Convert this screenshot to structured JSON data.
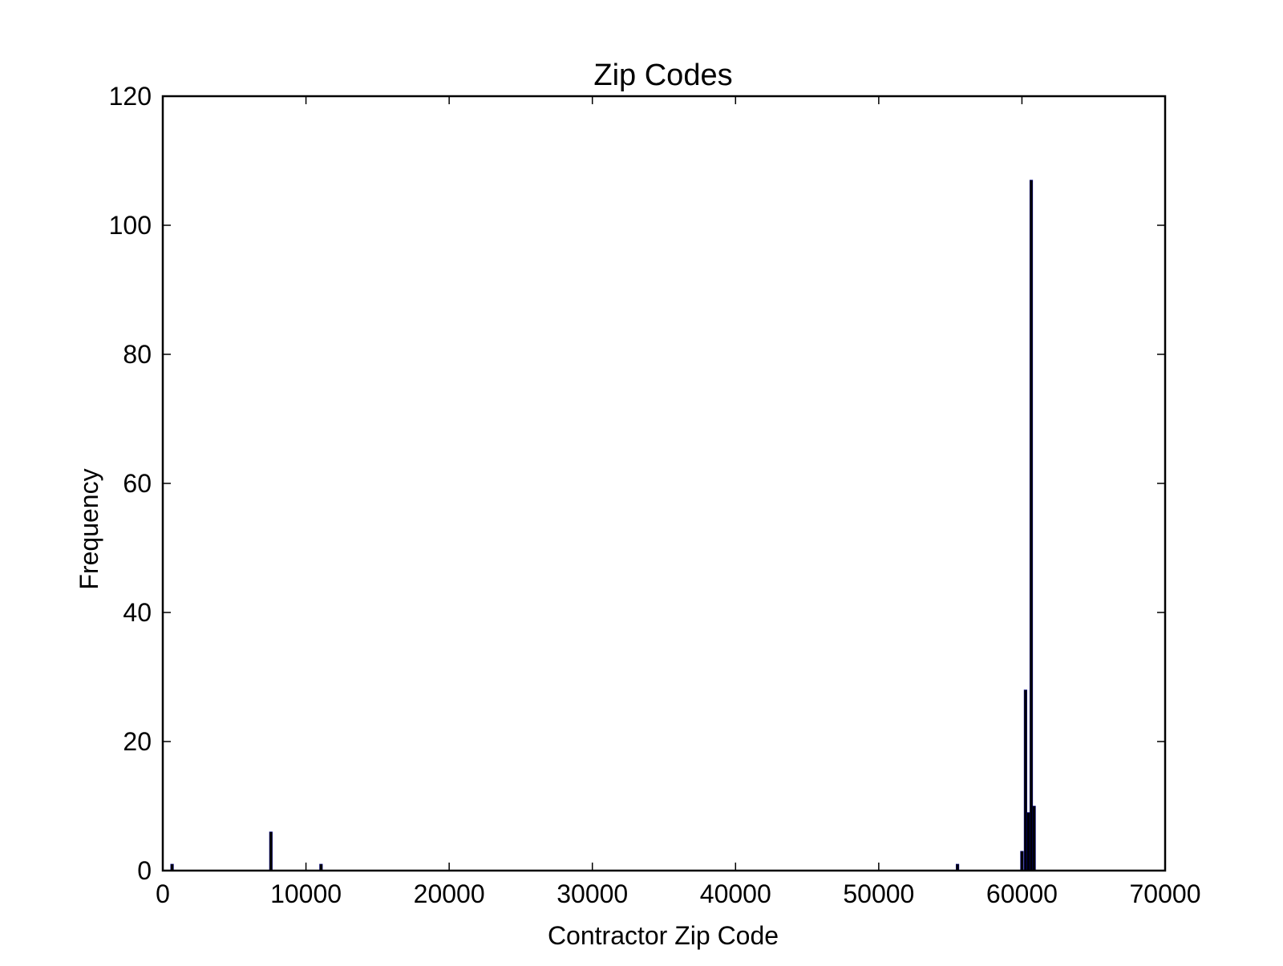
{
  "chart_data": {
    "type": "bar",
    "title": "Zip Codes",
    "xlabel": "Contractor Zip Code",
    "ylabel": "Frequency",
    "xlim": [
      0,
      70000
    ],
    "ylim": [
      0,
      120
    ],
    "xticks": [
      "0",
      "10000",
      "20000",
      "30000",
      "40000",
      "50000",
      "60000",
      "70000"
    ],
    "yticks": [
      "0",
      "20",
      "40",
      "60",
      "80",
      "100",
      "120"
    ],
    "grid": false,
    "bar_color": "#000000",
    "bar_edge_color": "#000080",
    "bins": [
      {
        "x": 650,
        "value": 1
      },
      {
        "x": 7550,
        "value": 6
      },
      {
        "x": 11050,
        "value": 1
      },
      {
        "x": 55500,
        "value": 1
      },
      {
        "x": 60000,
        "value": 3
      },
      {
        "x": 60250,
        "value": 28
      },
      {
        "x": 60450,
        "value": 9
      },
      {
        "x": 60650,
        "value": 107
      },
      {
        "x": 60850,
        "value": 10
      }
    ],
    "bin_width": 200
  }
}
